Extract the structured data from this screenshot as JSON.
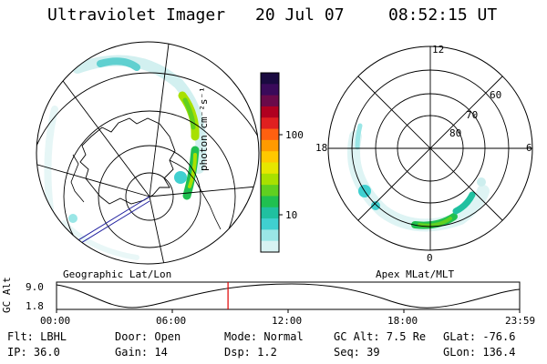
{
  "header": {
    "instrument": "Ultraviolet Imager",
    "date": "20 Jul 07",
    "time": "08:52:15 UT"
  },
  "left_panel": {
    "label": "Geographic Lat/Lon"
  },
  "right_panel": {
    "label": "Apex MLat/MLT",
    "mlt_labels": [
      "12",
      "18",
      "6",
      "0"
    ],
    "mlat_labels": [
      "60",
      "70",
      "80"
    ]
  },
  "colorbar": {
    "unit": "photon cm⁻²s⁻¹",
    "tick_labels": [
      "100",
      "10"
    ],
    "colors": [
      "#1a0a40",
      "#3a0a5a",
      "#6a0a4a",
      "#b00020",
      "#e02020",
      "#ff6010",
      "#ff9a00",
      "#ffc800",
      "#e6e600",
      "#a8e000",
      "#60d020",
      "#20c050",
      "#20c0a0",
      "#40d0d0",
      "#9ae6e6",
      "#d8f2f2"
    ]
  },
  "timeline": {
    "ylabel": "GC Alt",
    "y_ticks": [
      "9.0",
      "1.8"
    ],
    "x_ticks": [
      "00:00",
      "06:00",
      "12:00",
      "18:00",
      "23:59"
    ],
    "current_time_fraction": 0.3703,
    "marker_color": "#e00000"
  },
  "status": {
    "filter": "Flt: LBHL",
    "ip": "IP: 36.0",
    "door": "Door: Open",
    "gain": "Gain: 14",
    "mode": "Mode: Normal",
    "dsp": "Dsp:    1.2",
    "gc_alt": "GC Alt: 7.5 Re",
    "seq": "Seq: 39",
    "glat": "GLat: -76.6",
    "glon": "GLon: 136.4"
  }
}
